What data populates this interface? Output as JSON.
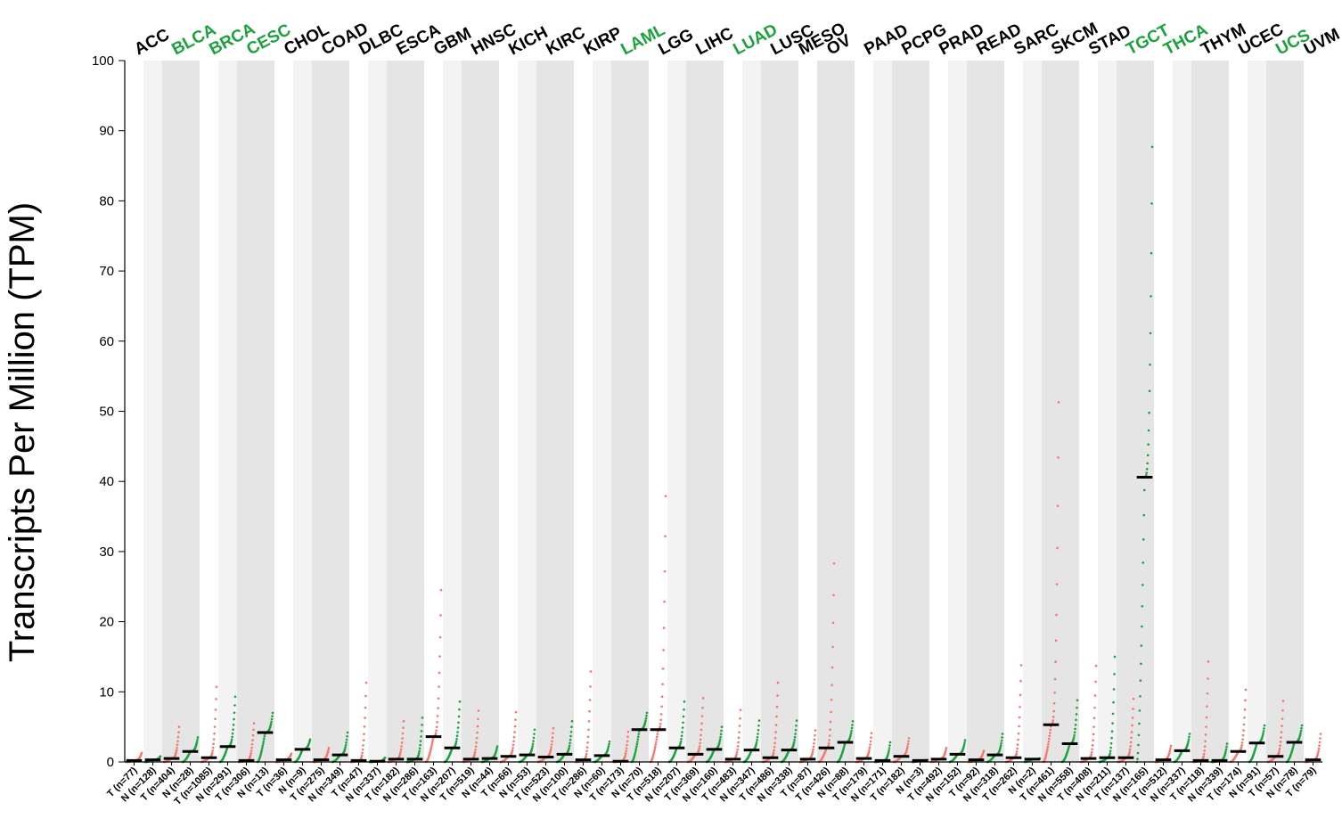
{
  "chart_data": {
    "type": "scatter",
    "ylabel": "Transcripts Per Million (TPM)",
    "ylim": [
      0,
      100
    ],
    "yticks": [
      0,
      10,
      20,
      30,
      40,
      50,
      60,
      70,
      80,
      90,
      100
    ],
    "colors": {
      "tumor": "#f8766d",
      "normal": "#1aa33c",
      "highlight_label": "#1aa33c",
      "default_label": "#000000",
      "shade": "#e5e5e5",
      "shade_light": "#f3f3f3",
      "median": "#000000"
    },
    "cancer_types": [
      {
        "name": "ACC",
        "highlight": false
      },
      {
        "name": "BLCA",
        "highlight": true
      },
      {
        "name": "BRCA",
        "highlight": true
      },
      {
        "name": "CESC",
        "highlight": true
      },
      {
        "name": "CHOL",
        "highlight": false
      },
      {
        "name": "COAD",
        "highlight": false
      },
      {
        "name": "DLBC",
        "highlight": false
      },
      {
        "name": "ESCA",
        "highlight": false
      },
      {
        "name": "GBM",
        "highlight": false
      },
      {
        "name": "HNSC",
        "highlight": false
      },
      {
        "name": "KICH",
        "highlight": false
      },
      {
        "name": "KIRC",
        "highlight": false
      },
      {
        "name": "KIRP",
        "highlight": false
      },
      {
        "name": "LAML",
        "highlight": true
      },
      {
        "name": "LGG",
        "highlight": false
      },
      {
        "name": "LIHC",
        "highlight": false
      },
      {
        "name": "LUAD",
        "highlight": true
      },
      {
        "name": "LUSC",
        "highlight": false
      },
      {
        "name": "MESO",
        "highlight": false
      },
      {
        "name": "OV",
        "highlight": false
      },
      {
        "name": "PAAD",
        "highlight": false
      },
      {
        "name": "PCPG",
        "highlight": false
      },
      {
        "name": "PRAD",
        "highlight": false
      },
      {
        "name": "READ",
        "highlight": false
      },
      {
        "name": "SARC",
        "highlight": false
      },
      {
        "name": "SKCM",
        "highlight": false
      },
      {
        "name": "STAD",
        "highlight": false
      },
      {
        "name": "TGCT",
        "highlight": true
      },
      {
        "name": "THCA",
        "highlight": true
      },
      {
        "name": "THYM",
        "highlight": false
      },
      {
        "name": "UCEC",
        "highlight": false
      },
      {
        "name": "UCS",
        "highlight": true
      },
      {
        "name": "UVM",
        "highlight": false
      }
    ],
    "groups": [
      {
        "cancer": "ACC",
        "type": "T",
        "label": "T (n=77)",
        "median": 0.2,
        "max": 1.3
      },
      {
        "cancer": "ACC",
        "type": "N",
        "label": "N (n=128)",
        "median": 0.3,
        "max": 0.8
      },
      {
        "cancer": "BLCA",
        "type": "T",
        "label": "T (n=404)",
        "median": 0.5,
        "max": 5.0
      },
      {
        "cancer": "BLCA",
        "type": "N",
        "label": "N (n=28)",
        "median": 1.5,
        "max": 3.5
      },
      {
        "cancer": "BRCA",
        "type": "T",
        "label": "T (n=1085)",
        "median": 0.6,
        "max": 10.7
      },
      {
        "cancer": "BRCA",
        "type": "N",
        "label": "N (n=291)",
        "median": 2.2,
        "max": 9.3
      },
      {
        "cancer": "CESC",
        "type": "T",
        "label": "T (n=306)",
        "median": 0.2,
        "max": 5.5
      },
      {
        "cancer": "CESC",
        "type": "N",
        "label": "N (n=13)",
        "median": 4.2,
        "max": 7.0
      },
      {
        "cancer": "CHOL",
        "type": "T",
        "label": "T (n=36)",
        "median": 0.3,
        "max": 1.2
      },
      {
        "cancer": "CHOL",
        "type": "N",
        "label": "N (n=9)",
        "median": 1.8,
        "max": 3.2
      },
      {
        "cancer": "COAD",
        "type": "T",
        "label": "T (n=275)",
        "median": 0.3,
        "max": 2.0
      },
      {
        "cancer": "COAD",
        "type": "N",
        "label": "N (n=349)",
        "median": 1.0,
        "max": 4.2
      },
      {
        "cancer": "DLBC",
        "type": "T",
        "label": "T (n=47)",
        "median": 0.2,
        "max": 11.3
      },
      {
        "cancer": "DLBC",
        "type": "N",
        "label": "N (n=337)",
        "median": 0.1,
        "max": 0.6
      },
      {
        "cancer": "ESCA",
        "type": "T",
        "label": "T (n=182)",
        "median": 0.4,
        "max": 5.8
      },
      {
        "cancer": "ESCA",
        "type": "N",
        "label": "N (n=286)",
        "median": 0.4,
        "max": 6.3
      },
      {
        "cancer": "GBM",
        "type": "T",
        "label": "T (n=163)",
        "median": 3.6,
        "max": 24.5
      },
      {
        "cancer": "GBM",
        "type": "N",
        "label": "N (n=207)",
        "median": 2.0,
        "max": 8.6
      },
      {
        "cancer": "HNSC",
        "type": "T",
        "label": "T (n=519)",
        "median": 0.4,
        "max": 7.3
      },
      {
        "cancer": "HNSC",
        "type": "N",
        "label": "N (n=44)",
        "median": 0.5,
        "max": 2.2
      },
      {
        "cancer": "KICH",
        "type": "T",
        "label": "T (n=66)",
        "median": 0.8,
        "max": 7.1
      },
      {
        "cancer": "KICH",
        "type": "N",
        "label": "N (n=53)",
        "median": 1.0,
        "max": 4.6
      },
      {
        "cancer": "KIRC",
        "type": "T",
        "label": "T (n=523)",
        "median": 0.7,
        "max": 4.8
      },
      {
        "cancer": "KIRC",
        "type": "N",
        "label": "N (n=100)",
        "median": 1.1,
        "max": 5.8
      },
      {
        "cancer": "KIRP",
        "type": "T",
        "label": "T (n=286)",
        "median": 0.3,
        "max": 12.9
      },
      {
        "cancer": "KIRP",
        "type": "N",
        "label": "N (n=60)",
        "median": 0.9,
        "max": 2.9
      },
      {
        "cancer": "LAML",
        "type": "T",
        "label": "T (n=173)",
        "median": 0.1,
        "max": 4.3
      },
      {
        "cancer": "LAML",
        "type": "N",
        "label": "N (n=70)",
        "median": 4.6,
        "max": 7.0
      },
      {
        "cancer": "LGG",
        "type": "T",
        "label": "T (n=518)",
        "median": 4.6,
        "max": 37.9
      },
      {
        "cancer": "LGG",
        "type": "N",
        "label": "N (n=207)",
        "median": 2.0,
        "max": 8.6
      },
      {
        "cancer": "LIHC",
        "type": "T",
        "label": "T (n=369)",
        "median": 1.1,
        "max": 9.1
      },
      {
        "cancer": "LIHC",
        "type": "N",
        "label": "N (n=160)",
        "median": 1.8,
        "max": 5.0
      },
      {
        "cancer": "LUAD",
        "type": "T",
        "label": "T (n=483)",
        "median": 0.4,
        "max": 7.4
      },
      {
        "cancer": "LUAD",
        "type": "N",
        "label": "N (n=347)",
        "median": 1.7,
        "max": 5.9
      },
      {
        "cancer": "LUSC",
        "type": "T",
        "label": "T (n=486)",
        "median": 0.6,
        "max": 11.3
      },
      {
        "cancer": "LUSC",
        "type": "N",
        "label": "N (n=338)",
        "median": 1.7,
        "max": 5.9
      },
      {
        "cancer": "MESO",
        "type": "T",
        "label": "T (n=87)",
        "median": 0.4,
        "max": 4.5
      },
      {
        "cancer": "OV",
        "type": "T",
        "label": "T (n=426)",
        "median": 2.0,
        "max": 28.3
      },
      {
        "cancer": "OV",
        "type": "N",
        "label": "N (n=88)",
        "median": 2.8,
        "max": 5.8
      },
      {
        "cancer": "PAAD",
        "type": "T",
        "label": "T (n=179)",
        "median": 0.5,
        "max": 4.1
      },
      {
        "cancer": "PAAD",
        "type": "N",
        "label": "N (n=171)",
        "median": 0.2,
        "max": 2.8
      },
      {
        "cancer": "PCPG",
        "type": "T",
        "label": "T (n=182)",
        "median": 0.8,
        "max": 3.4
      },
      {
        "cancer": "PCPG",
        "type": "N",
        "label": "N (n=3)",
        "median": 0.2,
        "max": 0.3
      },
      {
        "cancer": "PRAD",
        "type": "T",
        "label": "T (n=492)",
        "median": 0.4,
        "max": 2.0
      },
      {
        "cancer": "PRAD",
        "type": "N",
        "label": "N (n=152)",
        "median": 1.1,
        "max": 3.1
      },
      {
        "cancer": "READ",
        "type": "T",
        "label": "T (n=92)",
        "median": 0.3,
        "max": 1.6
      },
      {
        "cancer": "READ",
        "type": "N",
        "label": "N (n=318)",
        "median": 1.0,
        "max": 4.0
      },
      {
        "cancer": "SARC",
        "type": "T",
        "label": "T (n=262)",
        "median": 0.6,
        "max": 13.8
      },
      {
        "cancer": "SARC",
        "type": "N",
        "label": "N (n=2)",
        "median": 0.4,
        "max": 0.5
      },
      {
        "cancer": "SKCM",
        "type": "T",
        "label": "T (n=461)",
        "median": 5.3,
        "max": 51.3
      },
      {
        "cancer": "SKCM",
        "type": "N",
        "label": "N (n=558)",
        "median": 2.6,
        "max": 8.8
      },
      {
        "cancer": "STAD",
        "type": "T",
        "label": "T (n=408)",
        "median": 0.5,
        "max": 13.7
      },
      {
        "cancer": "STAD",
        "type": "N",
        "label": "N (n=211)",
        "median": 0.6,
        "max": 15.0
      },
      {
        "cancer": "TGCT",
        "type": "T",
        "label": "T (n=137)",
        "median": 0.6,
        "max": 9.0
      },
      {
        "cancer": "TGCT",
        "type": "N",
        "label": "N (n=165)",
        "median": 40.6,
        "max": 87.7
      },
      {
        "cancer": "THCA",
        "type": "T",
        "label": "T (n=512)",
        "median": 0.3,
        "max": 2.3
      },
      {
        "cancer": "THCA",
        "type": "N",
        "label": "N (n=337)",
        "median": 1.6,
        "max": 4.0
      },
      {
        "cancer": "THYM",
        "type": "T",
        "label": "T (n=118)",
        "median": 0.2,
        "max": 14.3
      },
      {
        "cancer": "THYM",
        "type": "N",
        "label": "N (n=339)",
        "median": 0.2,
        "max": 2.6
      },
      {
        "cancer": "UCEC",
        "type": "T",
        "label": "T (n=174)",
        "median": 1.5,
        "max": 10.3
      },
      {
        "cancer": "UCEC",
        "type": "N",
        "label": "N (n=91)",
        "median": 2.7,
        "max": 5.2
      },
      {
        "cancer": "UCS",
        "type": "T",
        "label": "T (n=57)",
        "median": 0.8,
        "max": 8.7
      },
      {
        "cancer": "UCS",
        "type": "N",
        "label": "N (n=78)",
        "median": 2.8,
        "max": 5.2
      },
      {
        "cancer": "UVM",
        "type": "T",
        "label": "T (n=79)",
        "median": 0.3,
        "max": 4.0
      }
    ]
  }
}
